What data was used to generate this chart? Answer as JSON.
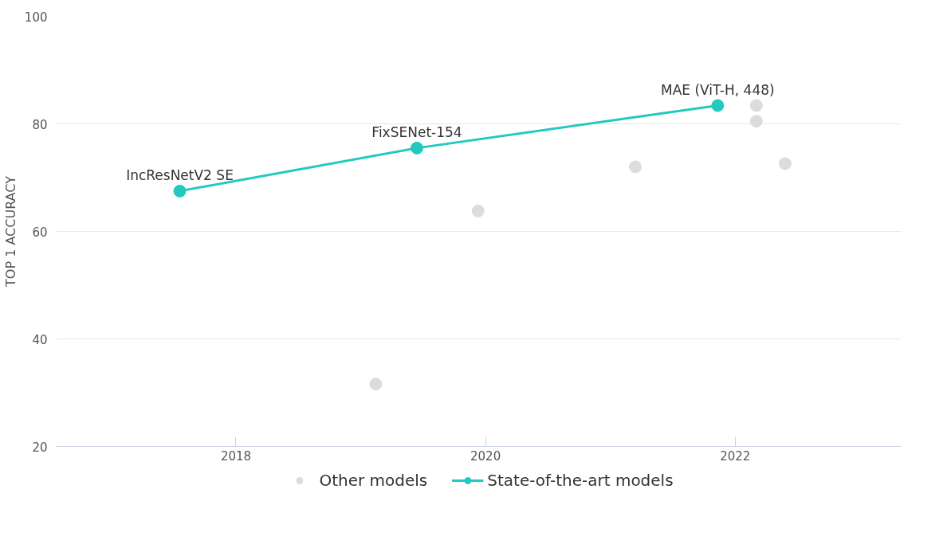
{
  "chart_data": {
    "type": "scatter",
    "ylabel": "TOP 1 ACCURACY",
    "xlim": [
      2016.56,
      2023.33
    ],
    "xticks": [
      2018,
      2020,
      2022
    ],
    "ylim": [
      20,
      100
    ],
    "yticks": [
      20,
      40,
      60,
      80,
      100
    ],
    "grid": "y",
    "legend": "bottom",
    "marker": "circle",
    "series": [
      {
        "name": "Other models",
        "color": "#dcdcdc",
        "x": [
          2019.12,
          2019.94,
          2021.2,
          2022.17,
          2022.17,
          2022.4
        ],
        "values": [
          31.6,
          63.8,
          72.0,
          83.4,
          80.5,
          72.6
        ]
      },
      {
        "name": "State-of-the-art models",
        "type": "line",
        "color": "#22c9bf",
        "x": [
          2017.55,
          2019.45,
          2021.86
        ],
        "values": [
          67.5,
          75.5,
          83.4
        ]
      }
    ],
    "annotations": [
      {
        "text": "IncResNetV2 SE",
        "x": 2017.55,
        "y": 67.5
      },
      {
        "text": "FixSENet-154",
        "x": 2019.45,
        "y": 75.5
      },
      {
        "text": "MAE (ViT-H, 448)",
        "x": 2021.86,
        "y": 83.4
      }
    ]
  }
}
